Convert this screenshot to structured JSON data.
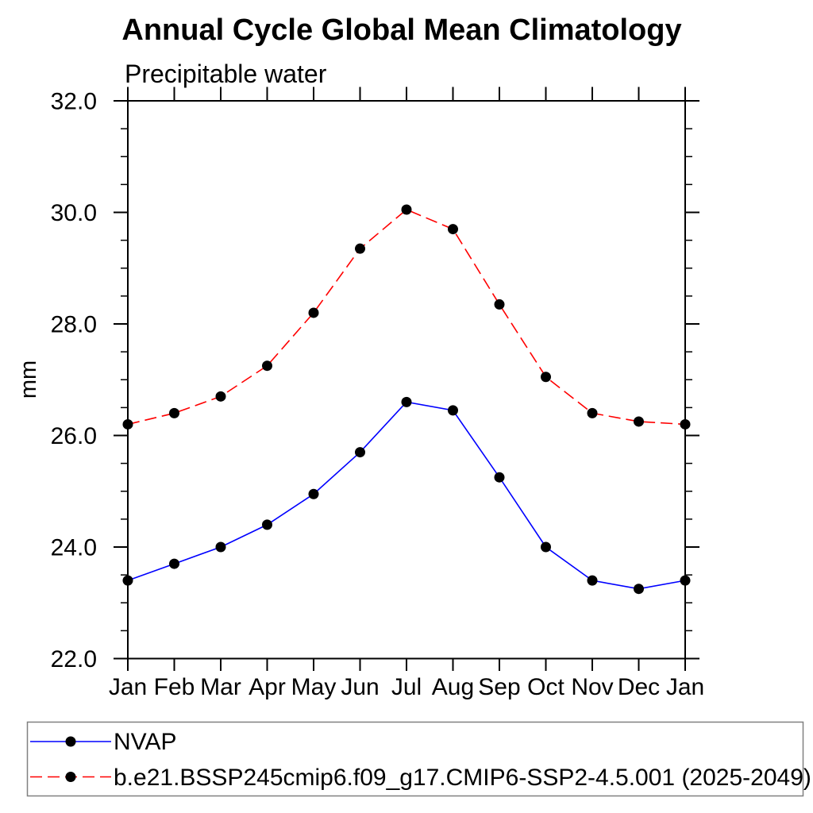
{
  "title": "Annual Cycle Global Mean Climatology",
  "chart_data": {
    "type": "line",
    "title": "Annual Cycle Global Mean Climatology",
    "subtitle": "Precipitable water",
    "xlabel": "",
    "ylabel": "mm",
    "categories": [
      "Jan",
      "Feb",
      "Mar",
      "Apr",
      "May",
      "Jun",
      "Jul",
      "Aug",
      "Sep",
      "Oct",
      "Nov",
      "Dec",
      "Jan"
    ],
    "ylim": [
      22.0,
      32.0
    ],
    "ytick_interval": 2.0,
    "yminor_interval": 0.5,
    "ytick_labels": [
      "22.0",
      "24.0",
      "26.0",
      "28.0",
      "30.0",
      "32.0"
    ],
    "grid": false,
    "legend_position": "bottom-left-box",
    "axis_color": "#000000",
    "marker_color": "#000000",
    "legend_border_color": "#808080",
    "series": [
      {
        "name": "NVAP",
        "color": "#0000ff",
        "style": "solid",
        "marker": "circle",
        "values": [
          23.4,
          23.7,
          24.0,
          24.4,
          24.95,
          25.7,
          26.6,
          26.45,
          25.25,
          24.0,
          23.4,
          23.25,
          23.4
        ]
      },
      {
        "name": "b.e21.BSSP245cmip6.f09_g17.CMIP6-SSP2-4.5.001 (2025-2049)",
        "color": "#ff0000",
        "style": "dashed",
        "marker": "circle",
        "values": [
          26.2,
          26.4,
          26.7,
          27.25,
          28.2,
          29.35,
          30.05,
          29.7,
          28.35,
          27.05,
          26.4,
          26.25,
          26.2
        ]
      }
    ]
  }
}
